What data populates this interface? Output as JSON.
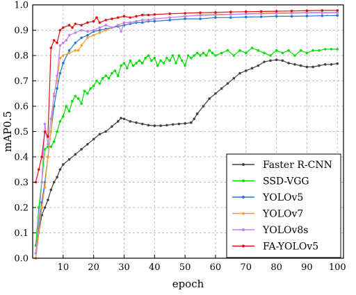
{
  "chart_data": {
    "type": "line",
    "xlabel": "epoch",
    "ylabel": "mAP0.5",
    "xlim": [
      0,
      102
    ],
    "ylim": [
      0.0,
      1.0
    ],
    "x_ticks": [
      10,
      20,
      30,
      40,
      50,
      60,
      70,
      80,
      90,
      100
    ],
    "y_ticks": [
      0.0,
      0.1,
      0.2,
      0.3,
      0.4,
      0.5,
      0.6,
      0.7,
      0.8,
      0.9,
      1.0
    ],
    "grid": true,
    "grid_style": "dashed",
    "legend_position": "bottom-right",
    "series": [
      {
        "name": "Faster R-CNN",
        "color": "#404040",
        "points": [
          [
            1,
            0.0
          ],
          [
            2,
            0.1
          ],
          [
            3,
            0.17
          ],
          [
            4,
            0.2
          ],
          [
            5,
            0.23
          ],
          [
            6,
            0.27
          ],
          [
            7,
            0.3
          ],
          [
            8,
            0.32
          ],
          [
            9,
            0.35
          ],
          [
            10,
            0.37
          ],
          [
            12,
            0.39
          ],
          [
            14,
            0.41
          ],
          [
            16,
            0.43
          ],
          [
            18,
            0.45
          ],
          [
            20,
            0.47
          ],
          [
            22,
            0.49
          ],
          [
            24,
            0.5
          ],
          [
            26,
            0.52
          ],
          [
            28,
            0.54
          ],
          [
            29,
            0.553
          ],
          [
            30,
            0.55
          ],
          [
            32,
            0.54
          ],
          [
            34,
            0.535
          ],
          [
            36,
            0.53
          ],
          [
            38,
            0.525
          ],
          [
            40,
            0.523
          ],
          [
            42,
            0.523
          ],
          [
            44,
            0.525
          ],
          [
            46,
            0.528
          ],
          [
            48,
            0.53
          ],
          [
            50,
            0.532
          ],
          [
            52,
            0.535
          ],
          [
            53,
            0.55
          ],
          [
            54,
            0.57
          ],
          [
            56,
            0.6
          ],
          [
            58,
            0.63
          ],
          [
            60,
            0.65
          ],
          [
            62,
            0.67
          ],
          [
            64,
            0.69
          ],
          [
            66,
            0.71
          ],
          [
            68,
            0.73
          ],
          [
            70,
            0.74
          ],
          [
            72,
            0.75
          ],
          [
            74,
            0.76
          ],
          [
            76,
            0.775
          ],
          [
            78,
            0.78
          ],
          [
            80,
            0.783
          ],
          [
            82,
            0.78
          ],
          [
            84,
            0.77
          ],
          [
            86,
            0.765
          ],
          [
            88,
            0.76
          ],
          [
            90,
            0.755
          ],
          [
            92,
            0.755
          ],
          [
            94,
            0.76
          ],
          [
            96,
            0.765
          ],
          [
            98,
            0.765
          ],
          [
            100,
            0.768
          ]
        ]
      },
      {
        "name": "SSD-VGG",
        "color": "#00e000",
        "points": [
          [
            1,
            0.05
          ],
          [
            2,
            0.2
          ],
          [
            3,
            0.3
          ],
          [
            4,
            0.43
          ],
          [
            5,
            0.44
          ],
          [
            6,
            0.44
          ],
          [
            7,
            0.46
          ],
          [
            8,
            0.5
          ],
          [
            9,
            0.54
          ],
          [
            10,
            0.56
          ],
          [
            11,
            0.6
          ],
          [
            12,
            0.58
          ],
          [
            13,
            0.62
          ],
          [
            14,
            0.64
          ],
          [
            15,
            0.63
          ],
          [
            16,
            0.61
          ],
          [
            17,
            0.66
          ],
          [
            18,
            0.65
          ],
          [
            19,
            0.67
          ],
          [
            20,
            0.68
          ],
          [
            21,
            0.7
          ],
          [
            22,
            0.69
          ],
          [
            23,
            0.71
          ],
          [
            24,
            0.72
          ],
          [
            25,
            0.71
          ],
          [
            26,
            0.73
          ],
          [
            27,
            0.74
          ],
          [
            28,
            0.72
          ],
          [
            29,
            0.76
          ],
          [
            30,
            0.77
          ],
          [
            31,
            0.75
          ],
          [
            32,
            0.78
          ],
          [
            33,
            0.76
          ],
          [
            34,
            0.77
          ],
          [
            35,
            0.78
          ],
          [
            36,
            0.77
          ],
          [
            37,
            0.79
          ],
          [
            38,
            0.8
          ],
          [
            39,
            0.78
          ],
          [
            40,
            0.79
          ],
          [
            41,
            0.76
          ],
          [
            42,
            0.78
          ],
          [
            43,
            0.77
          ],
          [
            44,
            0.79
          ],
          [
            45,
            0.78
          ],
          [
            46,
            0.8
          ],
          [
            47,
            0.77
          ],
          [
            48,
            0.8
          ],
          [
            49,
            0.78
          ],
          [
            50,
            0.76
          ],
          [
            51,
            0.8
          ],
          [
            52,
            0.79
          ],
          [
            53,
            0.8
          ],
          [
            54,
            0.81
          ],
          [
            55,
            0.8
          ],
          [
            56,
            0.81
          ],
          [
            57,
            0.8
          ],
          [
            58,
            0.82
          ],
          [
            59,
            0.81
          ],
          [
            60,
            0.8
          ],
          [
            62,
            0.81
          ],
          [
            64,
            0.82
          ],
          [
            66,
            0.8
          ],
          [
            68,
            0.82
          ],
          [
            70,
            0.81
          ],
          [
            72,
            0.83
          ],
          [
            74,
            0.82
          ],
          [
            76,
            0.81
          ],
          [
            78,
            0.8
          ],
          [
            80,
            0.82
          ],
          [
            82,
            0.81
          ],
          [
            84,
            0.82
          ],
          [
            86,
            0.8
          ],
          [
            88,
            0.82
          ],
          [
            90,
            0.81
          ],
          [
            92,
            0.82
          ],
          [
            94,
            0.82
          ],
          [
            96,
            0.825
          ],
          [
            98,
            0.825
          ],
          [
            100,
            0.825
          ]
        ]
      },
      {
        "name": "YOLOv5",
        "color": "#1f77d4",
        "points": [
          [
            1,
            0.02
          ],
          [
            2,
            0.12
          ],
          [
            3,
            0.22
          ],
          [
            4,
            0.3
          ],
          [
            5,
            0.4
          ],
          [
            6,
            0.5
          ],
          [
            7,
            0.6
          ],
          [
            8,
            0.67
          ],
          [
            9,
            0.73
          ],
          [
            10,
            0.77
          ],
          [
            12,
            0.82
          ],
          [
            14,
            0.85
          ],
          [
            16,
            0.87
          ],
          [
            18,
            0.88
          ],
          [
            20,
            0.895
          ],
          [
            22,
            0.9
          ],
          [
            24,
            0.905
          ],
          [
            26,
            0.91
          ],
          [
            28,
            0.915
          ],
          [
            30,
            0.92
          ],
          [
            32,
            0.925
          ],
          [
            34,
            0.93
          ],
          [
            36,
            0.93
          ],
          [
            38,
            0.935
          ],
          [
            40,
            0.935
          ],
          [
            45,
            0.94
          ],
          [
            50,
            0.945
          ],
          [
            55,
            0.945
          ],
          [
            60,
            0.95
          ],
          [
            65,
            0.95
          ],
          [
            70,
            0.952
          ],
          [
            75,
            0.953
          ],
          [
            80,
            0.955
          ],
          [
            85,
            0.955
          ],
          [
            90,
            0.956
          ],
          [
            95,
            0.957
          ],
          [
            100,
            0.958
          ]
        ]
      },
      {
        "name": "YOLOv7",
        "color": "#f0a030",
        "points": [
          [
            1,
            0.0
          ],
          [
            2,
            0.1
          ],
          [
            3,
            0.2
          ],
          [
            4,
            0.28
          ],
          [
            5,
            0.4
          ],
          [
            6,
            0.5
          ],
          [
            7,
            0.65
          ],
          [
            8,
            0.7
          ],
          [
            9,
            0.79
          ],
          [
            10,
            0.8
          ],
          [
            12,
            0.81
          ],
          [
            14,
            0.82
          ],
          [
            15,
            0.82
          ],
          [
            16,
            0.84
          ],
          [
            18,
            0.87
          ],
          [
            20,
            0.88
          ],
          [
            22,
            0.89
          ],
          [
            24,
            0.9
          ],
          [
            26,
            0.91
          ],
          [
            28,
            0.92
          ],
          [
            30,
            0.93
          ],
          [
            32,
            0.93
          ],
          [
            34,
            0.935
          ],
          [
            36,
            0.94
          ],
          [
            38,
            0.94
          ],
          [
            40,
            0.945
          ],
          [
            45,
            0.95
          ],
          [
            50,
            0.955
          ],
          [
            55,
            0.96
          ],
          [
            60,
            0.962
          ],
          [
            65,
            0.963
          ],
          [
            70,
            0.965
          ],
          [
            75,
            0.967
          ],
          [
            80,
            0.968
          ],
          [
            85,
            0.969
          ],
          [
            90,
            0.97
          ],
          [
            95,
            0.97
          ],
          [
            100,
            0.97
          ]
        ]
      },
      {
        "name": "YOLOv8s",
        "color": "#c080f0",
        "points": [
          [
            1,
            0.02
          ],
          [
            2,
            0.15
          ],
          [
            3,
            0.3
          ],
          [
            4,
            0.53
          ],
          [
            5,
            0.45
          ],
          [
            6,
            0.55
          ],
          [
            7,
            0.64
          ],
          [
            8,
            0.72
          ],
          [
            9,
            0.84
          ],
          [
            10,
            0.85
          ],
          [
            11,
            0.86
          ],
          [
            12,
            0.88
          ],
          [
            14,
            0.89
          ],
          [
            16,
            0.9
          ],
          [
            18,
            0.895
          ],
          [
            20,
            0.9
          ],
          [
            22,
            0.91
          ],
          [
            24,
            0.92
          ],
          [
            26,
            0.91
          ],
          [
            28,
            0.92
          ],
          [
            29,
            0.895
          ],
          [
            30,
            0.93
          ],
          [
            32,
            0.93
          ],
          [
            34,
            0.935
          ],
          [
            36,
            0.94
          ],
          [
            38,
            0.94
          ],
          [
            40,
            0.945
          ],
          [
            45,
            0.95
          ],
          [
            50,
            0.955
          ],
          [
            55,
            0.958
          ],
          [
            60,
            0.96
          ],
          [
            65,
            0.962
          ],
          [
            70,
            0.964
          ],
          [
            75,
            0.965
          ],
          [
            80,
            0.966
          ],
          [
            85,
            0.967
          ],
          [
            90,
            0.968
          ],
          [
            95,
            0.968
          ],
          [
            100,
            0.969
          ]
        ]
      },
      {
        "name": "FA-YOLOv5",
        "color": "#e01010",
        "points": [
          [
            1,
            0.3
          ],
          [
            2,
            0.35
          ],
          [
            3,
            0.4
          ],
          [
            4,
            0.5
          ],
          [
            5,
            0.48
          ],
          [
            6,
            0.83
          ],
          [
            7,
            0.86
          ],
          [
            8,
            0.85
          ],
          [
            9,
            0.9
          ],
          [
            10,
            0.91
          ],
          [
            12,
            0.92
          ],
          [
            13,
            0.91
          ],
          [
            14,
            0.925
          ],
          [
            16,
            0.92
          ],
          [
            18,
            0.93
          ],
          [
            20,
            0.935
          ],
          [
            21,
            0.95
          ],
          [
            22,
            0.93
          ],
          [
            24,
            0.94
          ],
          [
            26,
            0.945
          ],
          [
            28,
            0.95
          ],
          [
            30,
            0.955
          ],
          [
            32,
            0.95
          ],
          [
            34,
            0.955
          ],
          [
            36,
            0.96
          ],
          [
            38,
            0.96
          ],
          [
            40,
            0.962
          ],
          [
            45,
            0.965
          ],
          [
            50,
            0.967
          ],
          [
            55,
            0.969
          ],
          [
            60,
            0.97
          ],
          [
            65,
            0.972
          ],
          [
            70,
            0.973
          ],
          [
            75,
            0.974
          ],
          [
            80,
            0.975
          ],
          [
            85,
            0.976
          ],
          [
            90,
            0.977
          ],
          [
            95,
            0.978
          ],
          [
            100,
            0.978
          ]
        ]
      }
    ]
  }
}
